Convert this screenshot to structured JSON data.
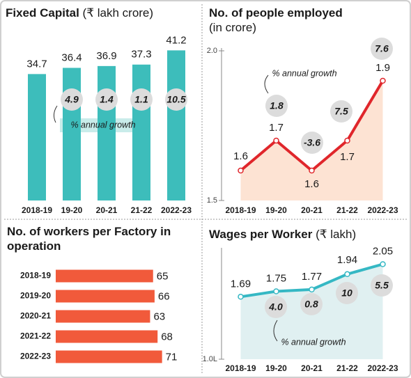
{
  "chart_data": [
    {
      "type": "bar",
      "title": "Fixed Capital",
      "subtitle": "(₹ lakh crore)",
      "categories": [
        "2018-19",
        "19-20",
        "20-21",
        "21-22",
        "2022-23"
      ],
      "values": [
        34.7,
        36.4,
        36.9,
        37.3,
        41.2
      ],
      "color": "#3dbdbb",
      "ylim": [
        0,
        47
      ],
      "growth": [
        null,
        4.9,
        1.4,
        1.1,
        10.5
      ],
      "annotation": "% annual growth"
    },
    {
      "type": "line",
      "title": "No. of people employed",
      "subtitle": "(in crore)",
      "categories": [
        "2018-19",
        "19-20",
        "20-21",
        "21-22",
        "2022-23"
      ],
      "values": [
        1.6,
        1.7,
        1.6,
        1.7,
        1.9
      ],
      "color": "#e0262b",
      "area_color": "#fde3d3",
      "ylim": [
        1.5,
        2.0
      ],
      "yticks": [
        {
          "value": 2,
          "label": "2.0"
        },
        1.5
      ],
      "growth": [
        null,
        1.8,
        -3.6,
        7.5,
        7.6
      ],
      "annotation": "% annual growth"
    },
    {
      "type": "barh",
      "title": "No. of workers per Factory in operation",
      "categories": [
        "2018-19",
        "2019-20",
        "2020-21",
        "2021-22",
        "2022-23"
      ],
      "values": [
        65,
        66,
        63,
        68,
        71
      ],
      "color": "#f15a3b",
      "xlim": [
        0,
        80
      ]
    },
    {
      "type": "line",
      "title": "Wages per Worker",
      "subtitle": "(₹ lakh)",
      "categories": [
        "2018-19",
        "19-20",
        "20-21",
        "21-22",
        "2022-23"
      ],
      "values": [
        1.69,
        1.75,
        1.77,
        1.94,
        2.05
      ],
      "color": "#35b8c4",
      "area_color": "#e0f0f1",
      "ylim": [
        1.0,
        2.2
      ],
      "yticks": [
        {
          "value": 1,
          "label": "1.0L"
        }
      ],
      "growth": [
        null,
        4,
        0.8,
        10,
        5.5
      ],
      "growth_labels": [
        null,
        "4.0",
        "0.8",
        "10",
        "5.5"
      ],
      "annotation": "% annual growth"
    }
  ]
}
